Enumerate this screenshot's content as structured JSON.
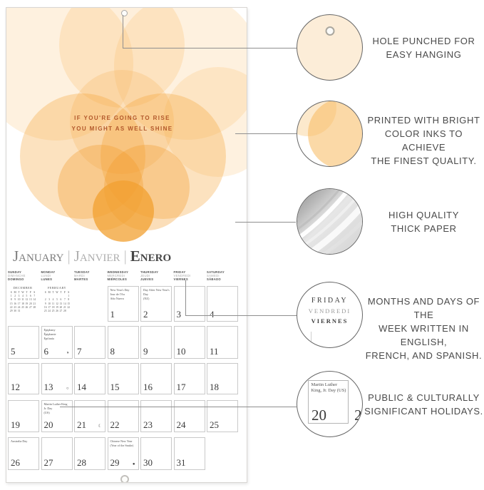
{
  "colors": {
    "orange_accent": "#F5A83C",
    "quote_text": "#B2582B",
    "label_text": "#4A4A4A",
    "connector_line": "#8F8F8F",
    "cream_detail": "#FCEDD8"
  },
  "quote": {
    "line1": "IF YOU'RE GOING TO RISE",
    "line2": "YOU MIGHT AS WELL SHINE"
  },
  "title": {
    "english": "January",
    "french": "Janvier",
    "spanish": "Enero",
    "separator": "|"
  },
  "calendar": {
    "day_headers": [
      {
        "en": "SUNDAY",
        "fr": "DIMANCHE",
        "es": "DOMINGO"
      },
      {
        "en": "MONDAY",
        "fr": "LUNDI",
        "es": "LUNES"
      },
      {
        "en": "TUESDAY",
        "fr": "MARDI",
        "es": "MARTES"
      },
      {
        "en": "WEDNESDAY",
        "fr": "MERCREDI",
        "es": "MIÉRCOLES"
      },
      {
        "en": "THURSDAY",
        "fr": "JEUDI",
        "es": "JUEVES"
      },
      {
        "en": "FRIDAY",
        "fr": "VENDREDI",
        "es": "VIERNES"
      },
      {
        "en": "SATURDAY",
        "fr": "SAMEDI",
        "es": "SÁBADO"
      }
    ],
    "mini_calendars": [
      {
        "title": "DECEMBER",
        "dow": [
          "S",
          "M",
          "T",
          "W",
          "T",
          "F",
          "S"
        ],
        "weeks": [
          [
            "1",
            "2",
            "3",
            "4",
            "5",
            "6",
            "7"
          ],
          [
            "8",
            "9",
            "10",
            "11",
            "12",
            "13",
            "14"
          ],
          [
            "15",
            "16",
            "17",
            "18",
            "19",
            "20",
            "21"
          ],
          [
            "22",
            "23",
            "24",
            "25",
            "26",
            "27",
            "28"
          ],
          [
            "29",
            "30",
            "31",
            "",
            "",
            "",
            ""
          ]
        ]
      },
      {
        "title": "FEBRUARY",
        "dow": [
          "S",
          "M",
          "T",
          "W",
          "T",
          "F",
          "S"
        ],
        "weeks": [
          [
            "",
            "",
            "",
            "",
            "",
            "",
            "1"
          ],
          [
            "2",
            "3",
            "4",
            "5",
            "6",
            "7",
            "8"
          ],
          [
            "9",
            "10",
            "11",
            "12",
            "13",
            "14",
            "15"
          ],
          [
            "16",
            "17",
            "18",
            "19",
            "20",
            "21",
            "22"
          ],
          [
            "23",
            "24",
            "25",
            "26",
            "27",
            "28",
            ""
          ]
        ]
      }
    ],
    "cells": [
      {
        "day": "1",
        "row": 0,
        "col": 3,
        "holiday": "New Year's Day\nJour de l'An\nAño Nuevo"
      },
      {
        "day": "2",
        "row": 0,
        "col": 4,
        "holiday": "Day After New Year's Day\n(NZ)"
      },
      {
        "day": "3",
        "row": 0,
        "col": 5
      },
      {
        "day": "4",
        "row": 0,
        "col": 6
      },
      {
        "day": "5",
        "row": 1,
        "col": 0
      },
      {
        "day": "6",
        "row": 1,
        "col": 1,
        "holiday": "Epiphany\nÉpiphanie\nEpifanía",
        "moon": "◑"
      },
      {
        "day": "7",
        "row": 1,
        "col": 2
      },
      {
        "day": "8",
        "row": 1,
        "col": 3
      },
      {
        "day": "9",
        "row": 1,
        "col": 4
      },
      {
        "day": "10",
        "row": 1,
        "col": 5
      },
      {
        "day": "11",
        "row": 1,
        "col": 6
      },
      {
        "day": "12",
        "row": 2,
        "col": 0
      },
      {
        "day": "13",
        "row": 2,
        "col": 1,
        "moon": "○"
      },
      {
        "day": "14",
        "row": 2,
        "col": 2
      },
      {
        "day": "15",
        "row": 2,
        "col": 3
      },
      {
        "day": "16",
        "row": 2,
        "col": 4
      },
      {
        "day": "17",
        "row": 2,
        "col": 5
      },
      {
        "day": "18",
        "row": 2,
        "col": 6
      },
      {
        "day": "19",
        "row": 3,
        "col": 0
      },
      {
        "day": "20",
        "row": 3,
        "col": 1,
        "holiday": "Martin Luther King Jr. Day\n(US)"
      },
      {
        "day": "21",
        "row": 3,
        "col": 2,
        "moon": "☾"
      },
      {
        "day": "22",
        "row": 3,
        "col": 3
      },
      {
        "day": "23",
        "row": 3,
        "col": 4
      },
      {
        "day": "24",
        "row": 3,
        "col": 5
      },
      {
        "day": "25",
        "row": 3,
        "col": 6
      },
      {
        "day": "26",
        "row": 4,
        "col": 0,
        "holiday": "Australia Day"
      },
      {
        "day": "27",
        "row": 4,
        "col": 1
      },
      {
        "day": "28",
        "row": 4,
        "col": 2
      },
      {
        "day": "29",
        "row": 4,
        "col": 3,
        "holiday": "Chinese New Year\n(Year of the Snake)",
        "moon": "●"
      },
      {
        "day": "30",
        "row": 4,
        "col": 4
      },
      {
        "day": "31",
        "row": 4,
        "col": 5
      }
    ]
  },
  "callouts": [
    {
      "label": "HOLE PUNCHED FOR\nEASY HANGING",
      "icon": "punched-hole-detail"
    },
    {
      "label": "PRINTED WITH BRIGHT\nCOLOR INKS TO ACHIEVE\nTHE FINEST QUALITY.",
      "icon": "color-ink-detail"
    },
    {
      "label": "HIGH QUALITY\nTHICK PAPER",
      "icon": "thick-paper-detail"
    },
    {
      "label": "MONTHS AND DAYS OF THE\nWEEK WRITTEN IN ENGLISH,\nFRENCH, AND SPANISH.",
      "icon": "trilingual-day-detail"
    },
    {
      "label": "PUBLIC & CULTURALLY\nSIGNIFICANT HOLIDAYS.",
      "icon": "holiday-cell-detail"
    }
  ],
  "callout_friday": {
    "en": "FRIDAY",
    "fr": "VENDREDI",
    "es": "VIERNES"
  },
  "callout_holiday_cell": {
    "holiday": "Martin Luther King, Jr. Day (US)",
    "day": "20",
    "next_day_partial": "2"
  }
}
